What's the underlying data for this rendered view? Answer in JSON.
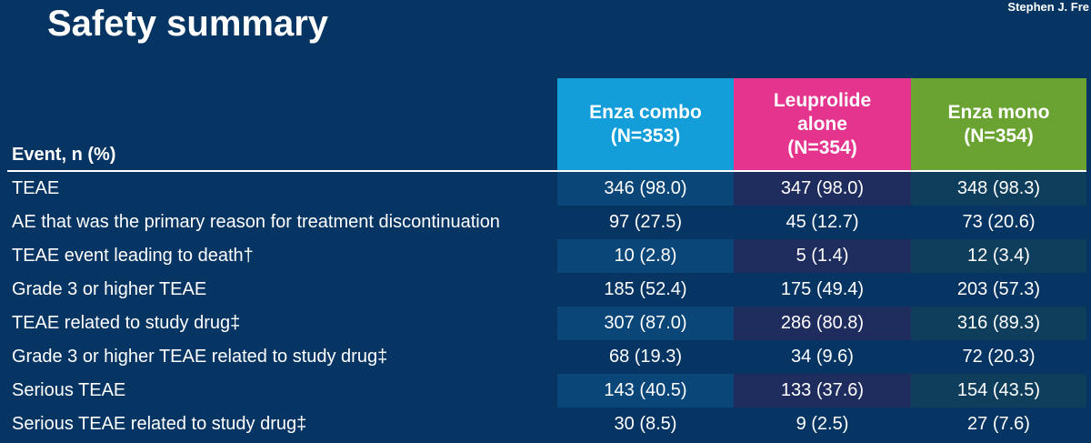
{
  "title": "Safety summary",
  "author": "Stephen J. Fre",
  "colors": {
    "background": "#063463",
    "enza_combo": "#139ed9",
    "leuprolide_alone": "#e5348e",
    "enza_mono": "#6aa332"
  },
  "table": {
    "headers": [
      "Event, n (%)",
      [
        "Enza combo",
        "(N=353)"
      ],
      [
        "Leuprolide",
        "alone",
        "(N=354)"
      ],
      [
        "Enza mono",
        "(N=354)"
      ]
    ],
    "rows": [
      [
        "TEAE",
        "346 (98.0)",
        "347 (98.0)",
        "348 (98.3)"
      ],
      [
        "AE that was the primary reason for treatment discontinuation",
        "97 (27.5)",
        "45 (12.7)",
        "73 (20.6)"
      ],
      [
        "TEAE event leading to death†",
        "10 (2.8)",
        "5 (1.4)",
        "12 (3.4)"
      ],
      [
        "Grade 3 or higher TEAE",
        "185 (52.4)",
        "175 (49.4)",
        "203 (57.3)"
      ],
      [
        "TEAE related to study drug‡",
        "307 (87.0)",
        "286 (80.8)",
        "316 (89.3)"
      ],
      [
        "Grade 3 or higher TEAE related to study drug‡",
        "68 (19.3)",
        "34 (9.6)",
        "72 (20.3)"
      ],
      [
        "Serious TEAE",
        "143 (40.5)",
        "133 (37.6)",
        "154 (43.5)"
      ],
      [
        "Serious TEAE related to study drug‡",
        "30 (8.5)",
        "9 (2.5)",
        "27 (7.6)"
      ]
    ]
  }
}
